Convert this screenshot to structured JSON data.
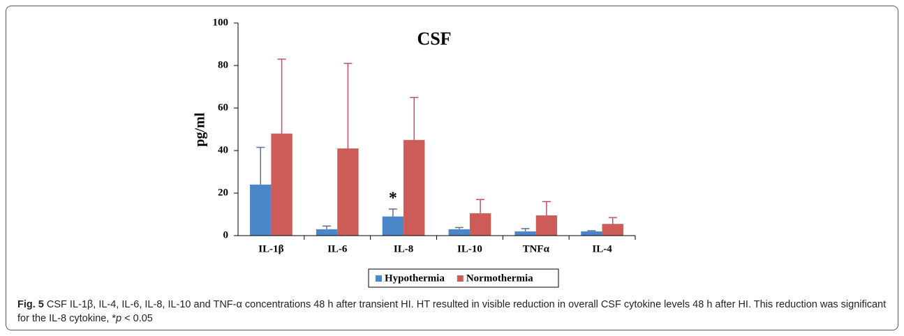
{
  "chart_data": {
    "type": "bar",
    "title": "CSF",
    "y_label": "pg/ml",
    "categories": [
      "IL-1β",
      "IL-6",
      "IL-8",
      "IL-10",
      "TNFα",
      "IL-4"
    ],
    "series": [
      {
        "name": "Hypothermia",
        "color": "#4a86c8",
        "error_color": "#5b6e9e",
        "values": [
          24,
          3,
          9,
          3,
          2,
          2
        ],
        "errors": [
          17.5,
          1.5,
          3.5,
          0.8,
          1.3,
          0.3
        ]
      },
      {
        "name": "Normothermia",
        "color": "#cd5b57",
        "error_color": "#c0506a",
        "values": [
          48,
          41,
          45,
          10.5,
          9.5,
          5.5
        ],
        "errors": [
          35,
          40,
          20,
          6.5,
          6.5,
          3
        ]
      }
    ],
    "ylim": [
      0,
      100
    ],
    "yticks": [
      0,
      20,
      40,
      60,
      80,
      100
    ],
    "legend": "bottom",
    "annotations": [
      {
        "text": "*"
      }
    ]
  },
  "caption": {
    "label": "Fig. 5",
    "text": "CSF IL-1β, IL-4, IL-6, IL-8, IL-10 and TNF-α concentrations 48 h after transient HI. HT resulted in visible reduction in overall CSF cytokine levels 48 h after HI. This reduction was significant for the IL-8 cytokine, *",
    "italic": "p",
    "tail": " < 0.05"
  }
}
